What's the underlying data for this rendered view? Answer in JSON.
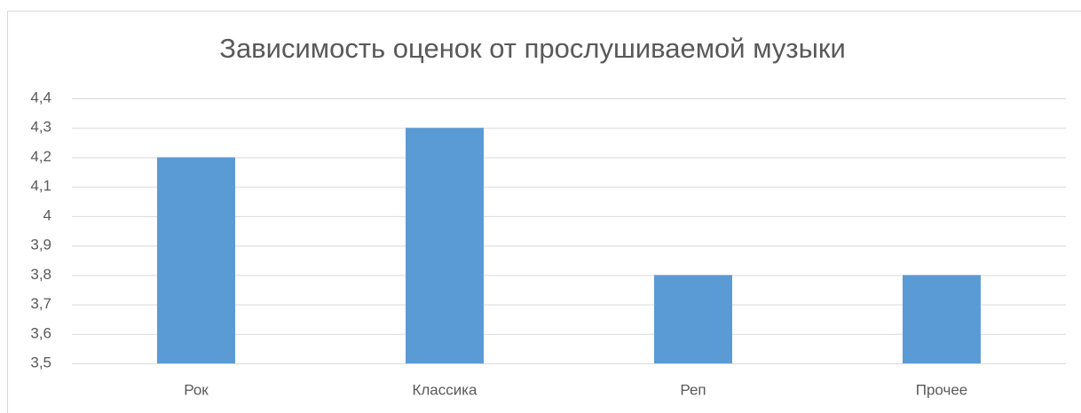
{
  "chart_data": {
    "type": "bar",
    "title": "Зависимость  оценок от прослушиваемой музыки",
    "categories": [
      "Рок",
      "Классика",
      "Реп",
      "Прочее"
    ],
    "values": [
      4.2,
      4.3,
      3.8,
      3.8
    ],
    "color": "#5b9bd5",
    "ylim": [
      3.5,
      4.4
    ],
    "yticks": [
      {
        "value": 3.5,
        "label": "3,5"
      },
      {
        "value": 3.6,
        "label": "3,6"
      },
      {
        "value": 3.7,
        "label": "3,7"
      },
      {
        "value": 3.8,
        "label": "3,8"
      },
      {
        "value": 3.9,
        "label": "3,9"
      },
      4,
      {
        "value": 4.1,
        "label": "4,1"
      },
      {
        "value": 4.2,
        "label": "4,2"
      },
      {
        "value": 4.3,
        "label": "4,3"
      },
      {
        "value": 4.4,
        "label": "4,4"
      }
    ],
    "grid": true
  }
}
